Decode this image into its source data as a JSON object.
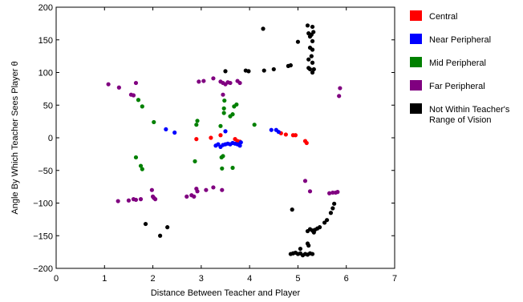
{
  "chart_data": {
    "type": "scatter",
    "title": "",
    "xlabel": "Distance Between Teacher and Player",
    "ylabel": "Angle By Which Teacher Sees Player  θ",
    "xlim": [
      0,
      7
    ],
    "ylim": [
      -200,
      200
    ],
    "xticks": [
      "0",
      "1",
      "2",
      "3",
      "4",
      "5",
      "6",
      "7"
    ],
    "yticks": [
      "200",
      "150",
      "100",
      "50",
      "0",
      "−50",
      "−100",
      "−150",
      "−200"
    ],
    "grid": false,
    "legend_position": "right",
    "series": [
      {
        "name": "Central",
        "color": "#ff0000",
        "points": [
          [
            2.9,
            -2
          ],
          [
            3.2,
            0
          ],
          [
            3.4,
            4
          ],
          [
            3.7,
            -2
          ],
          [
            3.75,
            -5
          ],
          [
            3.8,
            -6
          ],
          [
            4.65,
            7
          ],
          [
            4.75,
            5
          ],
          [
            4.9,
            4
          ],
          [
            4.95,
            4
          ],
          [
            5.15,
            -5
          ],
          [
            5.18,
            -8
          ]
        ]
      },
      {
        "name": "Near Peripheral",
        "color": "#0000ff",
        "points": [
          [
            2.27,
            13
          ],
          [
            2.45,
            8
          ],
          [
            3.3,
            -12
          ],
          [
            3.35,
            -10
          ],
          [
            3.4,
            -14
          ],
          [
            3.45,
            -11
          ],
          [
            3.5,
            -10
          ],
          [
            3.55,
            -9
          ],
          [
            3.6,
            -10
          ],
          [
            3.65,
            -8
          ],
          [
            3.7,
            -9
          ],
          [
            3.75,
            -10
          ],
          [
            3.8,
            -12
          ],
          [
            3.82,
            -7
          ],
          [
            3.5,
            10
          ],
          [
            4.45,
            12
          ],
          [
            4.55,
            12
          ],
          [
            4.6,
            9
          ]
        ]
      },
      {
        "name": "Mid Peripheral",
        "color": "#008000",
        "points": [
          [
            1.7,
            58
          ],
          [
            1.78,
            48
          ],
          [
            2.02,
            24
          ],
          [
            1.65,
            -30
          ],
          [
            1.75,
            -43
          ],
          [
            1.78,
            -48
          ],
          [
            2.87,
            -36
          ],
          [
            2.9,
            20
          ],
          [
            2.92,
            26
          ],
          [
            3.4,
            18
          ],
          [
            3.42,
            -30
          ],
          [
            3.45,
            -28
          ],
          [
            3.43,
            -47
          ],
          [
            3.65,
            -46
          ],
          [
            3.47,
            38
          ],
          [
            3.47,
            45
          ],
          [
            3.48,
            57
          ],
          [
            3.6,
            33
          ],
          [
            3.65,
            36
          ],
          [
            3.68,
            48
          ],
          [
            3.73,
            51
          ],
          [
            4.1,
            20
          ]
        ]
      },
      {
        "name": "Far Peripheral",
        "color": "#800080",
        "points": [
          [
            1.08,
            82
          ],
          [
            1.3,
            77
          ],
          [
            1.55,
            66
          ],
          [
            1.6,
            65
          ],
          [
            1.65,
            84
          ],
          [
            1.28,
            -97
          ],
          [
            1.5,
            -96
          ],
          [
            1.6,
            -94
          ],
          [
            1.65,
            -95
          ],
          [
            1.75,
            -94
          ],
          [
            1.98,
            -80
          ],
          [
            2.0,
            -90
          ],
          [
            2.02,
            -92
          ],
          [
            2.05,
            -94
          ],
          [
            2.7,
            -90
          ],
          [
            2.8,
            -88
          ],
          [
            2.85,
            -90
          ],
          [
            2.9,
            -78
          ],
          [
            2.92,
            -82
          ],
          [
            3.1,
            -80
          ],
          [
            3.25,
            -76
          ],
          [
            3.43,
            -80
          ],
          [
            2.95,
            86
          ],
          [
            3.05,
            87
          ],
          [
            3.25,
            91
          ],
          [
            3.4,
            86
          ],
          [
            3.45,
            84
          ],
          [
            3.5,
            82
          ],
          [
            3.55,
            85
          ],
          [
            3.6,
            84
          ],
          [
            3.75,
            87
          ],
          [
            3.8,
            84
          ],
          [
            3.45,
            66
          ],
          [
            5.15,
            -66
          ],
          [
            5.25,
            -82
          ],
          [
            5.65,
            -85
          ],
          [
            5.72,
            -84
          ],
          [
            5.78,
            -84
          ],
          [
            5.82,
            -83
          ],
          [
            5.85,
            64
          ],
          [
            5.87,
            76
          ]
        ]
      },
      {
        "name": "Not Within Teacher's\nRange of Vision",
        "color": "#000000",
        "points": [
          [
            1.85,
            -132
          ],
          [
            2.15,
            -150
          ],
          [
            2.3,
            -137
          ],
          [
            3.5,
            102
          ],
          [
            3.92,
            103
          ],
          [
            3.98,
            102
          ],
          [
            4.28,
            167
          ],
          [
            4.3,
            103
          ],
          [
            4.5,
            105
          ],
          [
            4.8,
            110
          ],
          [
            4.85,
            111
          ],
          [
            5.0,
            147
          ],
          [
            5.2,
            172
          ],
          [
            5.22,
            160
          ],
          [
            5.25,
            155
          ],
          [
            5.28,
            158
          ],
          [
            5.3,
            170
          ],
          [
            5.32,
            162
          ],
          [
            5.3,
            148
          ],
          [
            5.25,
            138
          ],
          [
            5.3,
            135
          ],
          [
            5.22,
            120
          ],
          [
            5.28,
            125
          ],
          [
            5.3,
            115
          ],
          [
            5.22,
            107
          ],
          [
            5.25,
            105
          ],
          [
            5.3,
            100
          ],
          [
            5.33,
            105
          ],
          [
            4.88,
            -110
          ],
          [
            4.85,
            -178
          ],
          [
            4.9,
            -177
          ],
          [
            4.95,
            -176
          ],
          [
            5.0,
            -178
          ],
          [
            5.05,
            -177
          ],
          [
            5.1,
            -180
          ],
          [
            5.15,
            -178
          ],
          [
            5.2,
            -179
          ],
          [
            5.25,
            -177
          ],
          [
            5.3,
            -178
          ],
          [
            5.05,
            -170
          ],
          [
            5.2,
            -162
          ],
          [
            5.22,
            -165
          ],
          [
            5.25,
            -140
          ],
          [
            5.3,
            -142
          ],
          [
            5.33,
            -145
          ],
          [
            5.35,
            -141
          ],
          [
            5.4,
            -139
          ],
          [
            5.45,
            -137
          ],
          [
            5.55,
            -130
          ],
          [
            5.6,
            -126
          ],
          [
            5.68,
            -115
          ],
          [
            5.72,
            -108
          ],
          [
            5.75,
            -101
          ],
          [
            5.2,
            -143
          ]
        ]
      }
    ]
  }
}
